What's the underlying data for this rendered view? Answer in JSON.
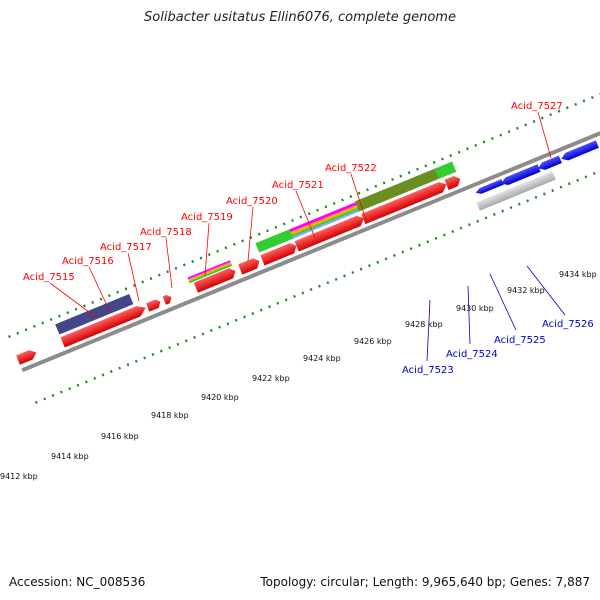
{
  "title": "Solibacter usitatus Ellin6076, complete genome",
  "footer": {
    "accession": "Accession: NC_008536",
    "summary": "Topology: circular; Length: 9,965,640 bp; Genes: 7,887"
  },
  "axis_ticks": [
    "9412 kbp",
    "9414 kbp",
    "9416 kbp",
    "9418 kbp",
    "9420 kbp",
    "9422 kbp",
    "9424 kbp",
    "9426 kbp",
    "9428 kbp",
    "9430 kbp",
    "9432 kbp",
    "9434 kbp"
  ],
  "top_strand_labels": [
    "Acid_7515",
    "Acid_7516",
    "Acid_7517",
    "Acid_7518",
    "Acid_7519",
    "Acid_7520",
    "Acid_7521",
    "Acid_7522",
    "Acid_7527"
  ],
  "bottom_strand_labels": [
    "Acid_7523",
    "Acid_7524",
    "Acid_7525",
    "Acid_7526"
  ],
  "colors": {
    "forward_cds": "#ff0000",
    "reverse_cds": "#0000ee",
    "backbone": "#888888",
    "tick": "#228822",
    "feature_purple": "#444488",
    "feature_green": "#33cc33",
    "feature_olive": "#6b8e23",
    "feature_cyan": "#20c0c0",
    "feature_grey": "#c8c8c8"
  }
}
